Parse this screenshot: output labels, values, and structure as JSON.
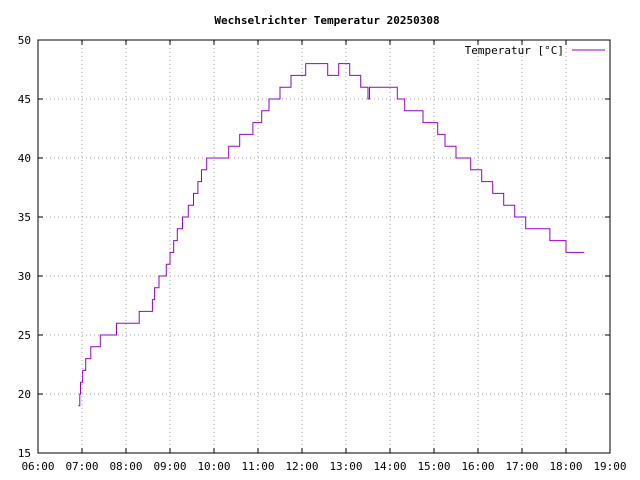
{
  "chart_data": {
    "type": "line",
    "title": "Wechselrichter Temperatur 20250308",
    "xlabel": "",
    "ylabel": "",
    "xlim": [
      "06:00",
      "19:00"
    ],
    "ylim": [
      15,
      50
    ],
    "grid": true,
    "legend_position": "top-right",
    "x_ticks": [
      "06:00",
      "07:00",
      "08:00",
      "09:00",
      "10:00",
      "11:00",
      "12:00",
      "13:00",
      "14:00",
      "15:00",
      "16:00",
      "17:00",
      "18:00",
      "19:00"
    ],
    "y_ticks": [
      "15",
      "20",
      "25",
      "30",
      "35",
      "40",
      "45",
      "50"
    ],
    "series": [
      {
        "name": "Temperatur [°C]",
        "color": "#9400d3",
        "points": [
          [
            "06:55",
            19
          ],
          [
            "06:57",
            20
          ],
          [
            "06:58",
            21
          ],
          [
            "07:01",
            22
          ],
          [
            "07:05",
            23
          ],
          [
            "07:12",
            24
          ],
          [
            "07:25",
            25
          ],
          [
            "07:47",
            26
          ],
          [
            "08:18",
            27
          ],
          [
            "08:36",
            28
          ],
          [
            "08:39",
            29
          ],
          [
            "08:45",
            30
          ],
          [
            "08:55",
            31
          ],
          [
            "09:00",
            32
          ],
          [
            "09:05",
            33
          ],
          [
            "09:10",
            34
          ],
          [
            "09:17",
            35
          ],
          [
            "09:25",
            36
          ],
          [
            "09:32",
            37
          ],
          [
            "09:38",
            38
          ],
          [
            "09:43",
            39
          ],
          [
            "09:50",
            40
          ],
          [
            "10:20",
            41
          ],
          [
            "10:35",
            42
          ],
          [
            "10:53",
            43
          ],
          [
            "11:05",
            44
          ],
          [
            "11:15",
            45
          ],
          [
            "11:30",
            46
          ],
          [
            "11:45",
            47
          ],
          [
            "12:05",
            48
          ],
          [
            "12:35",
            47
          ],
          [
            "12:50",
            48
          ],
          [
            "13:05",
            47
          ],
          [
            "13:20",
            46
          ],
          [
            "13:30",
            45
          ],
          [
            "13:32",
            46
          ],
          [
            "14:10",
            45
          ],
          [
            "14:20",
            44
          ],
          [
            "14:45",
            43
          ],
          [
            "15:05",
            42
          ],
          [
            "15:15",
            41
          ],
          [
            "15:30",
            40
          ],
          [
            "15:50",
            39
          ],
          [
            "16:05",
            38
          ],
          [
            "16:20",
            37
          ],
          [
            "16:35",
            36
          ],
          [
            "16:50",
            35
          ],
          [
            "17:05",
            34
          ],
          [
            "17:38",
            33
          ],
          [
            "18:00",
            32
          ],
          [
            "18:25",
            32
          ]
        ]
      }
    ]
  }
}
